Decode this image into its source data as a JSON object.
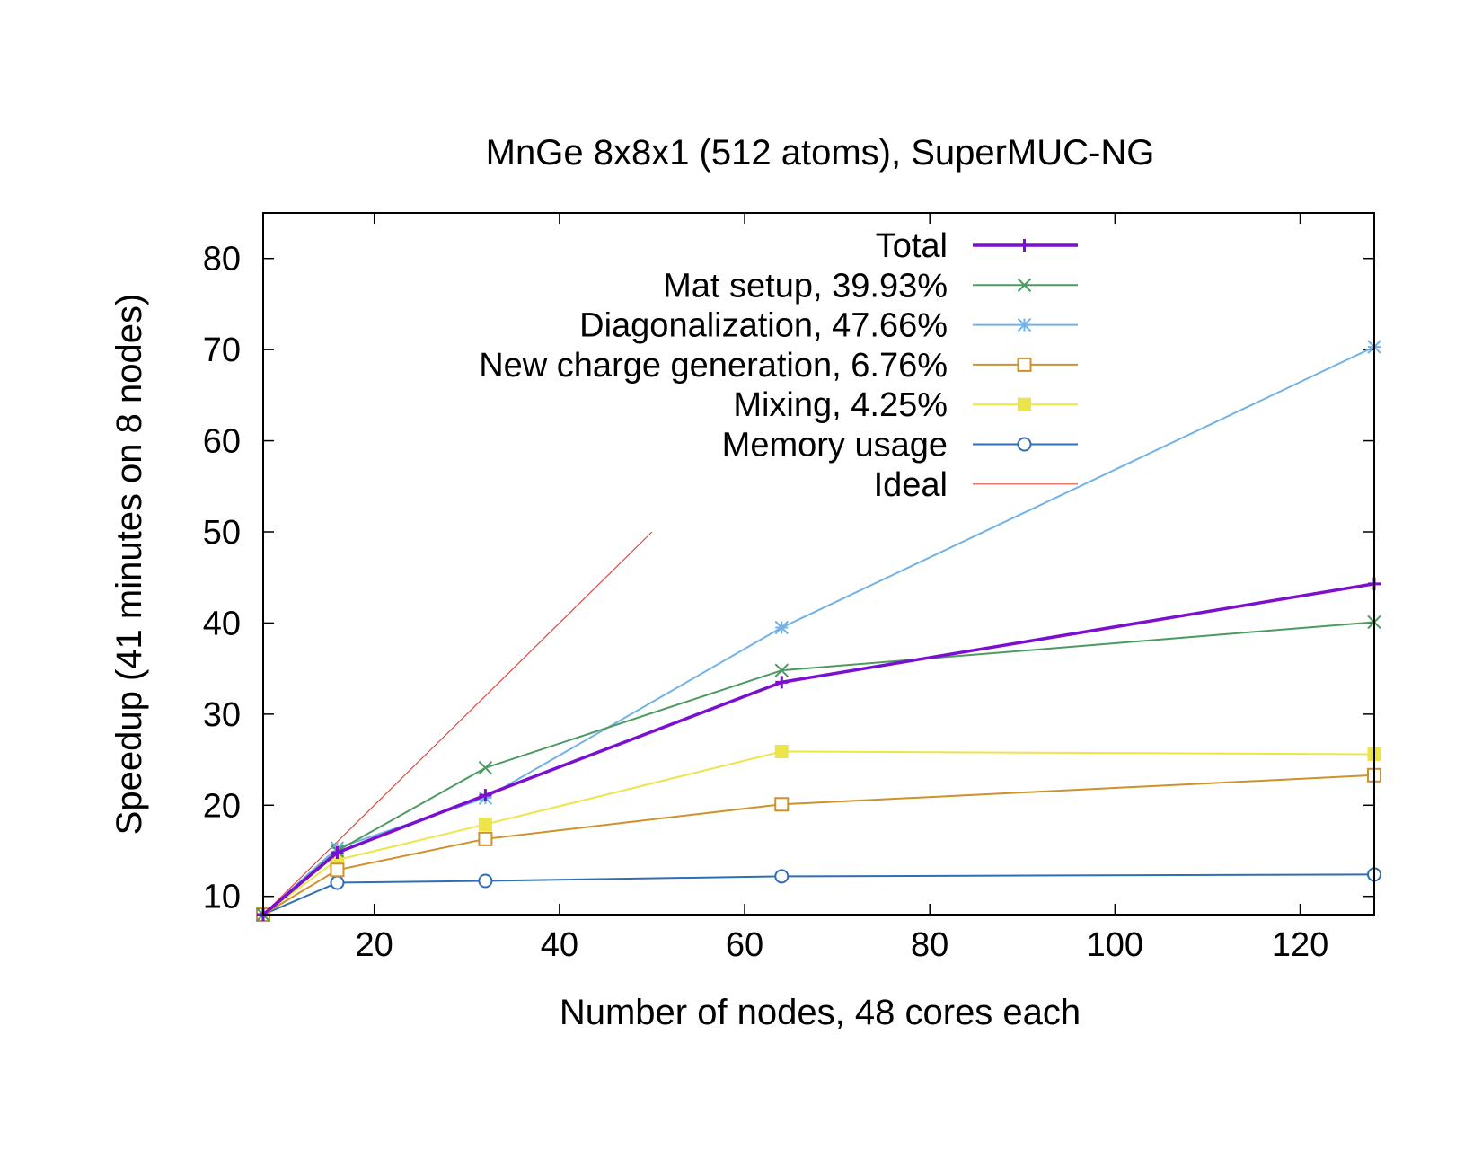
{
  "chart_data": {
    "type": "line",
    "title": "MnGe 8x8x1 (512 atoms), SuperMUC-NG",
    "xlabel": "Number of nodes, 48 cores each",
    "ylabel": "Speedup (41 minutes on 8 nodes)",
    "xlim": [
      8,
      128
    ],
    "ylim": [
      8,
      85
    ],
    "xticks": [
      20,
      40,
      60,
      80,
      100,
      120
    ],
    "yticks": [
      10,
      20,
      30,
      40,
      50,
      60,
      70,
      80
    ],
    "grid": false,
    "legend_position": "top-right",
    "x": [
      8,
      16,
      32,
      64,
      128
    ],
    "series": [
      {
        "name": "Total",
        "color": "#7a0fd1",
        "marker": "plus",
        "width": 3.5,
        "values": [
          8,
          14.8,
          21.1,
          33.5,
          44.3
        ]
      },
      {
        "name": "Mat setup, 39.93%",
        "color": "#4c9a62",
        "marker": "cross",
        "width": 2,
        "values": [
          8,
          15.0,
          24.1,
          34.8,
          40.1
        ]
      },
      {
        "name": "Diagonalization, 47.66%",
        "color": "#72b2e5",
        "marker": "star",
        "width": 2,
        "values": [
          8,
          15.3,
          20.8,
          39.5,
          70.3
        ]
      },
      {
        "name": "New charge generation, 6.76%",
        "color": "#d0902a",
        "marker": "open-square",
        "width": 2,
        "values": [
          8,
          12.9,
          16.3,
          20.1,
          23.3
        ]
      },
      {
        "name": "Mixing, 4.25%",
        "color": "#ece54a",
        "marker": "filled-square",
        "width": 2,
        "values": [
          8,
          14.0,
          17.9,
          25.9,
          25.6
        ]
      },
      {
        "name": "Memory usage",
        "color": "#2f6db5",
        "marker": "open-circle",
        "width": 2,
        "values": [
          8,
          11.5,
          11.7,
          12.2,
          12.4
        ]
      },
      {
        "name": "Ideal",
        "color": "#e0483f",
        "marker": "none",
        "width": 1.2,
        "x": [
          8,
          50
        ],
        "values": [
          8,
          50
        ]
      }
    ]
  }
}
